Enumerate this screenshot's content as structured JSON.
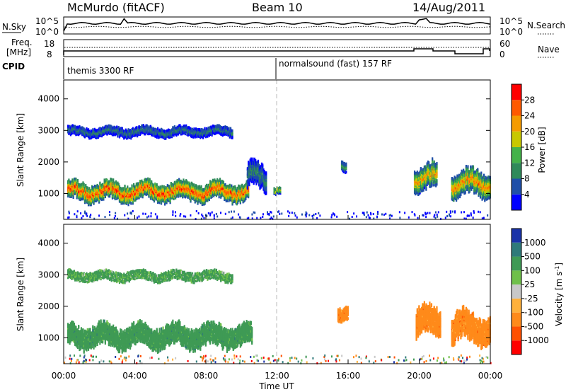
{
  "header": {
    "station": "McMurdo (fitACF)",
    "beam": "Beam 10",
    "date": "14/Aug/2011"
  },
  "noise_panel": {
    "left_label": "N.Sky",
    "right_label": "N.Search",
    "left_top": "10^5",
    "left_bottom": "10^0",
    "right_top": "10^5",
    "right_bottom": "10^0"
  },
  "freq_panel": {
    "left_label_1": "Freq.",
    "left_label_2": "[MHz]",
    "left_top": "18",
    "left_bottom": "8",
    "right_label": "Nave",
    "right_top": "60",
    "right_bottom": "0"
  },
  "cpid": {
    "label": "CPID",
    "mode_1": "themis 3300 RF",
    "mode_2": "normalsound (fast) 157 RF"
  },
  "chart_data": [
    {
      "type": "heatmap",
      "title": "",
      "xlabel": "Time UT",
      "ylabel": "Slant Range [km]",
      "xticks": [
        "00:00",
        "04:00",
        "08:00",
        "12:00",
        "16:00",
        "20:00",
        "00:00"
      ],
      "xlim_hours": [
        0,
        24
      ],
      "yticks": [
        1000,
        2000,
        3000,
        4000
      ],
      "ylim": [
        180,
        4600
      ],
      "colorbar": {
        "label": "Power [dB]",
        "ticks": [
          "4",
          "8",
          "12",
          "16",
          "20",
          "24",
          "28"
        ],
        "range": [
          0,
          30
        ],
        "colors": [
          "#0000ff",
          "#1f4fa8",
          "#2f8a5a",
          "#44b24a",
          "#c8c800",
          "#f59b00",
          "#ff5a00",
          "#ff0000"
        ]
      },
      "features": [
        {
          "start": 0.2,
          "end": 10.4,
          "center_km": 1050,
          "thickness_km": 500,
          "peak_db": 28
        },
        {
          "start": 0.2,
          "end": 9.5,
          "center_km": 2950,
          "thickness_km": 260,
          "peak_db": 9
        },
        {
          "start": 10.3,
          "end": 11.4,
          "center_km": 1500,
          "thickness_km": 700,
          "peak_db": 10
        },
        {
          "start": 11.8,
          "end": 12.2,
          "center_km": 1100,
          "thickness_km": 200,
          "peak_db": 18
        },
        {
          "start": 15.6,
          "end": 15.9,
          "center_km": 1900,
          "thickness_km": 300,
          "peak_db": 12
        },
        {
          "start": 19.7,
          "end": 21.0,
          "center_km": 1500,
          "thickness_km": 700,
          "peak_db": 22
        },
        {
          "start": 21.8,
          "end": 24.0,
          "center_km": 1300,
          "thickness_km": 700,
          "peak_db": 24
        }
      ]
    },
    {
      "type": "heatmap",
      "title": "",
      "xlabel": "Time UT",
      "ylabel": "Slant Range [km]",
      "xticks": [
        "00:00",
        "04:00",
        "08:00",
        "12:00",
        "16:00",
        "20:00",
        "00:00"
      ],
      "xlim_hours": [
        0,
        24
      ],
      "yticks": [
        1000,
        2000,
        3000,
        4000
      ],
      "ylim": [
        180,
        4600
      ],
      "colorbar": {
        "label": "Velocity [m s^-1]",
        "ticks": [
          "1000",
          "500",
          "100",
          "25",
          "-25",
          "-100",
          "-500",
          "-1000"
        ],
        "colors": [
          "#1a33a8",
          "#2f7a7a",
          "#3f9a55",
          "#6fc04a",
          "#c8c8c8",
          "#ffb13c",
          "#ff8a1a",
          "#ff5000",
          "#ff0000"
        ]
      },
      "features": [
        {
          "start": 0.2,
          "end": 10.6,
          "center_km": 1050,
          "thickness_km": 600,
          "velocity": 300
        },
        {
          "start": 0.2,
          "end": 9.5,
          "center_km": 2950,
          "thickness_km": 260,
          "velocity": 150
        },
        {
          "start": 15.4,
          "end": 16.0,
          "center_km": 1800,
          "thickness_km": 400,
          "velocity": -300
        },
        {
          "start": 19.8,
          "end": 21.2,
          "center_km": 1500,
          "thickness_km": 800,
          "velocity": -300
        },
        {
          "start": 21.8,
          "end": 24.0,
          "center_km": 1300,
          "thickness_km": 800,
          "velocity": -300
        }
      ]
    }
  ]
}
